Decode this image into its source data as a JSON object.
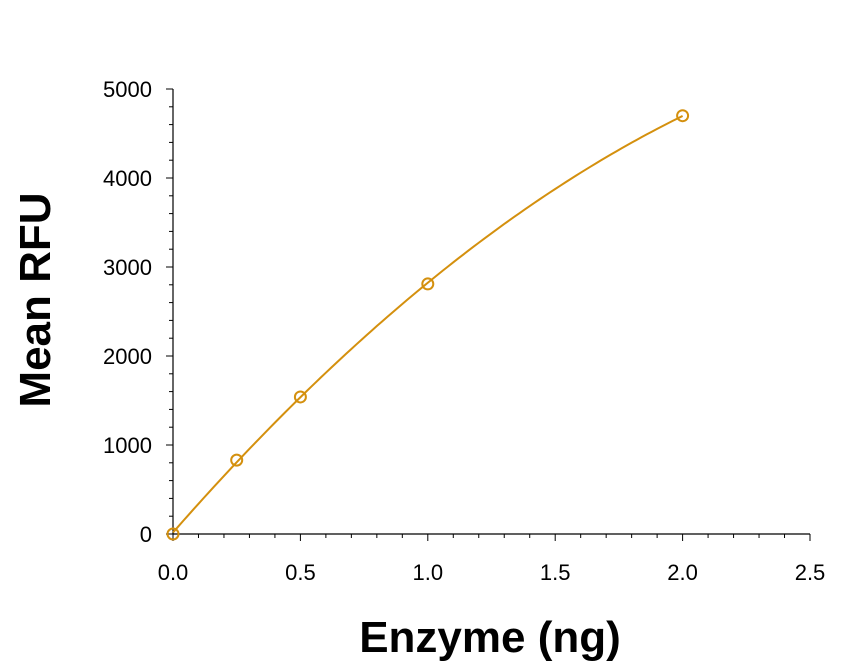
{
  "chart_data": {
    "type": "scatter",
    "xlabel": "Enzyme (ng)",
    "ylabel": "Mean RFU",
    "xlim": [
      0,
      2.5
    ],
    "ylim": [
      0,
      5000
    ],
    "x_ticks": [
      "0.0",
      "0.5",
      "1.0",
      "1.5",
      "2.0",
      "2.5"
    ],
    "y_ticks": [
      "0",
      "1000",
      "2000",
      "3000",
      "4000",
      "5000"
    ],
    "x_tick_values": [
      0,
      0.5,
      1.0,
      1.5,
      2.0,
      2.5
    ],
    "y_tick_values": [
      0,
      1000,
      2000,
      3000,
      4000,
      5000
    ],
    "grid": false,
    "fit_line": true,
    "marker": "open-circle",
    "color": "#D4900E",
    "series": [
      {
        "x": [
          0,
          0.25,
          0.5,
          1.0,
          2.0
        ],
        "y": [
          0,
          830,
          1540,
          2810,
          4700
        ]
      }
    ]
  }
}
